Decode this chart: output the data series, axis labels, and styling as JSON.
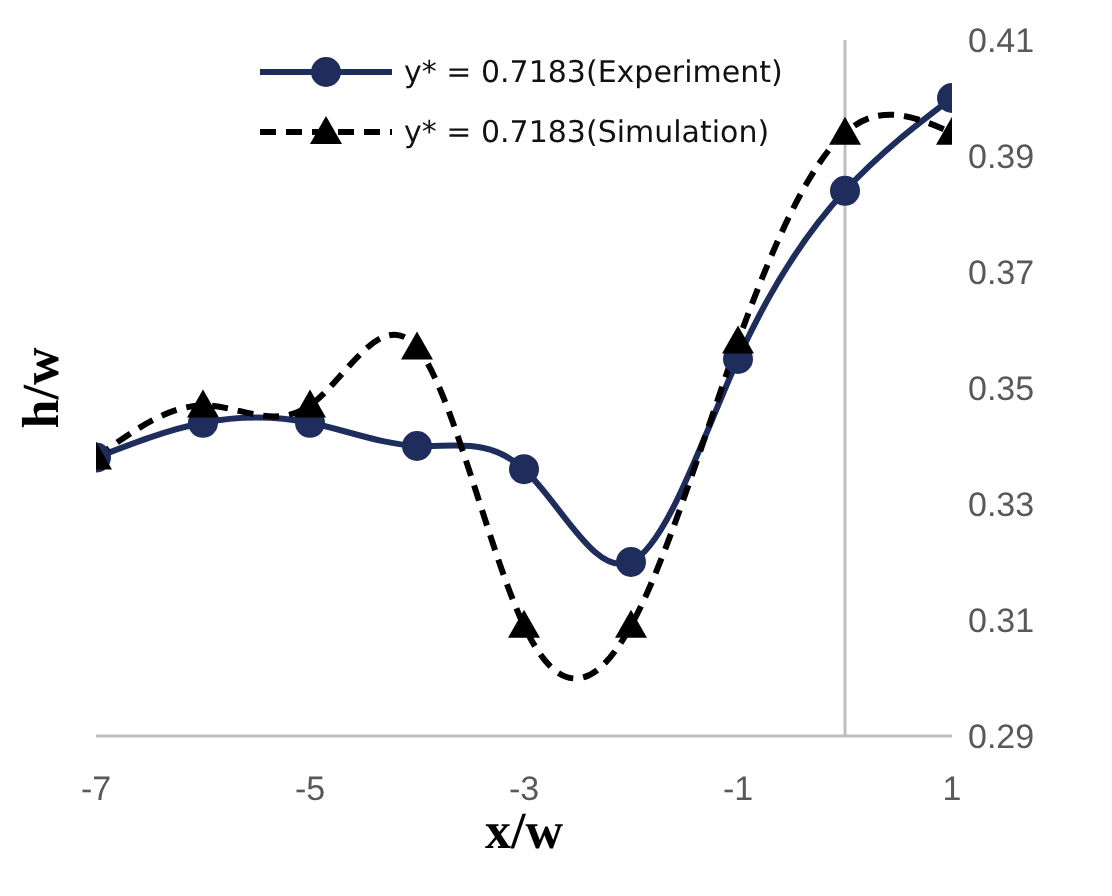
{
  "chart_data": {
    "type": "line",
    "xlabel": "x/w",
    "ylabel": "h/w",
    "xlim": [
      -7,
      1
    ],
    "xticks": [
      -7,
      -5,
      -3,
      -1,
      1
    ],
    "ylim": [
      0.29,
      0.41
    ],
    "yticks": [
      0.29,
      0.31,
      0.33,
      0.35,
      0.37,
      0.39,
      0.41
    ],
    "grid": false,
    "legend": "top",
    "ref_lines": [
      {
        "axis": "x",
        "value": 0,
        "color": "#bfbfbf"
      }
    ],
    "series": [
      {
        "name": "y* = 0.7183(Experiment)",
        "color": "#1f2d5c",
        "marker": "circle",
        "line_style": "solid",
        "x": [
          -7,
          -6,
          -5,
          -4,
          -3,
          -2,
          -1,
          0,
          1
        ],
        "values": [
          0.338,
          0.344,
          0.344,
          0.34,
          0.336,
          0.32,
          0.355,
          0.384,
          0.4
        ]
      },
      {
        "name": "y* = 0.7183(Simulation)",
        "color": "#000000",
        "marker": "triangle",
        "line_style": "dashed",
        "x": [
          -7,
          -6,
          -5,
          -4,
          -3,
          -2,
          -1,
          0,
          1
        ],
        "values": [
          0.338,
          0.347,
          0.347,
          0.357,
          0.309,
          0.309,
          0.358,
          0.394,
          0.394
        ]
      }
    ]
  }
}
